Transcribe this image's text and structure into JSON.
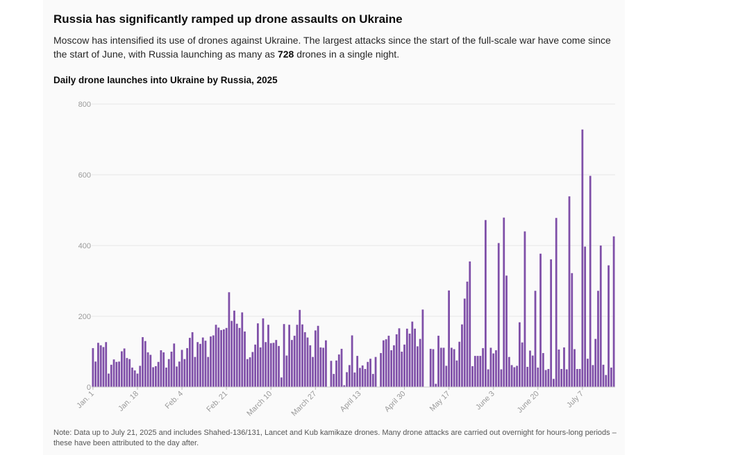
{
  "header": {
    "title": "Russia has significantly ramped up drone assaults on Ukraine",
    "subtitle_pre": "Moscow has intensified its use of drones against Ukraine. The largest attacks since the start of the full-scale war have come since the start of June, with Russia launching as many as ",
    "subtitle_bold": "728",
    "subtitle_post": " drones in a single night."
  },
  "note": "Note: Data up to July 21, 2025 and includes Shahed-136/131, Lancet and Kub kamikaze drones. Many drone attacks are carried out overnight for hours-long periods – these have been attributed to the day after.",
  "colors": {
    "bar": "#7f4fa8",
    "grid": "#e6e6e6",
    "tick": "#9a9a9a"
  },
  "chart_data": {
    "type": "bar",
    "title": "Daily drone launches into Ukraine by Russia, 2025",
    "xlabel": "",
    "ylabel": "",
    "ylim": [
      0,
      800
    ],
    "yticks": [
      0,
      200,
      400,
      600,
      800
    ],
    "grid": true,
    "x_start": "2025-01-01",
    "x_end": "2025-07-21",
    "x_tick_labels": [
      {
        "date": "2025-01-01",
        "label": "Jan. 1"
      },
      {
        "date": "2025-01-18",
        "label": "Jan. 18"
      },
      {
        "date": "2025-02-04",
        "label": "Feb. 4"
      },
      {
        "date": "2025-02-21",
        "label": "Feb. 21"
      },
      {
        "date": "2025-03-10",
        "label": "March 10"
      },
      {
        "date": "2025-03-27",
        "label": "March 27"
      },
      {
        "date": "2025-04-13",
        "label": "April 13"
      },
      {
        "date": "2025-04-30",
        "label": "April 30"
      },
      {
        "date": "2025-05-17",
        "label": "May 17"
      },
      {
        "date": "2025-06-03",
        "label": "June 3"
      },
      {
        "date": "2025-06-20",
        "label": "June 20"
      },
      {
        "date": "2025-07-07",
        "label": "July 7"
      }
    ],
    "series": [
      {
        "values": [
          110,
          72,
          125,
          118,
          113,
          127,
          38,
          63,
          78,
          71,
          72,
          101,
          109,
          82,
          79,
          55,
          47,
          38,
          60,
          141,
          130,
          98,
          91,
          56,
          59,
          71,
          104,
          98,
          55,
          79,
          100,
          123,
          58,
          72,
          105,
          79,
          110,
          139,
          155,
          85,
          127,
          122,
          140,
          131,
          85,
          143,
          146,
          176,
          168,
          161,
          163,
          167,
          268,
          187,
          216,
          179,
          167,
          211,
          157,
          79,
          84,
          99,
          120,
          180,
          112,
          194,
          127,
          176,
          124,
          125,
          133,
          116,
          27,
          178,
          89,
          176,
          133,
          145,
          176,
          218,
          177,
          155,
          140,
          118,
          85,
          160,
          173,
          112,
          111,
          132,
          0,
          74,
          37,
          75,
          92,
          108,
          5,
          42,
          62,
          146,
          41,
          88,
          54,
          61,
          51,
          71,
          80,
          37,
          85,
          0,
          96,
          132,
          135,
          145,
          104,
          118,
          149,
          166,
          100,
          120,
          165,
          151,
          185,
          165,
          115,
          136,
          219,
          0,
          0,
          108,
          107,
          9,
          145,
          111,
          111,
          60,
          273,
          111,
          107,
          75,
          128,
          177,
          250,
          298,
          355,
          59,
          88,
          88,
          88,
          110,
          472,
          50,
          111,
          95,
          104,
          407,
          50,
          479,
          315,
          85,
          62,
          56,
          60,
          183,
          126,
          440,
          57,
          103,
          89,
          272,
          55,
          377,
          96,
          48,
          51,
          361,
          23,
          478,
          106,
          51,
          112,
          50,
          539,
          322,
          107,
          51,
          51,
          728,
          397,
          80,
          597,
          62,
          136,
          272,
          400,
          63,
          34,
          344,
          55,
          426
        ]
      }
    ]
  }
}
